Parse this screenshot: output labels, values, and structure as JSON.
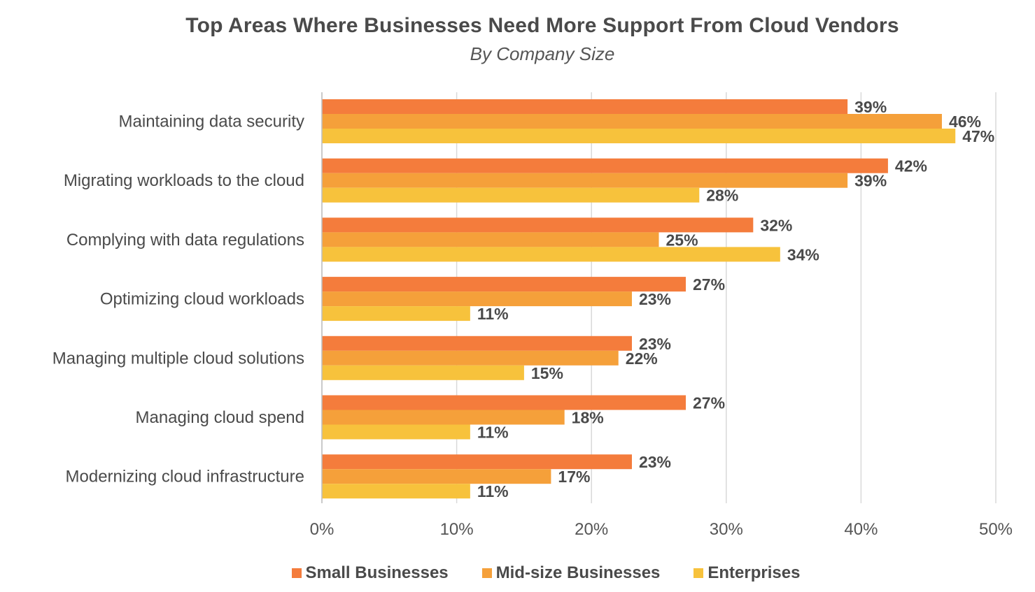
{
  "chart_data": {
    "type": "bar",
    "orientation": "horizontal",
    "title": "Top Areas Where Businesses Need More Support From Cloud Vendors",
    "subtitle": "By Company Size",
    "categories": [
      "Maintaining data security",
      "Migrating workloads to the cloud",
      "Complying with data regulations",
      "Optimizing cloud workloads",
      "Managing multiple cloud solutions",
      "Managing cloud spend",
      "Modernizing cloud infrastructure"
    ],
    "series": [
      {
        "name": "Small Businesses",
        "color": "#f47c3c",
        "values": [
          39,
          42,
          32,
          27,
          23,
          27,
          23
        ],
        "labels": [
          "39%",
          "42%",
          "32%",
          "27%",
          "23%",
          "27%",
          "23%"
        ]
      },
      {
        "name": "Mid-size Businesses",
        "color": "#f5a03a",
        "values": [
          46,
          39,
          25,
          23,
          22,
          18,
          17
        ],
        "labels": [
          "46%",
          "39%",
          "25%",
          "23%",
          "22%",
          "18%",
          "17%"
        ]
      },
      {
        "name": "Enterprises",
        "color": "#f7c23c",
        "values": [
          47,
          28,
          34,
          11,
          15,
          11,
          11
        ],
        "labels": [
          "47%",
          "28%",
          "34%",
          "11%",
          "15%",
          "11%",
          "11%"
        ]
      }
    ],
    "xlim": [
      0,
      50
    ],
    "xticks": [
      0,
      10,
      20,
      30,
      40,
      50
    ],
    "xtick_labels": [
      "0%",
      "10%",
      "20%",
      "30%",
      "40%",
      "50%"
    ],
    "grid": true,
    "legend_position": "bottom"
  }
}
